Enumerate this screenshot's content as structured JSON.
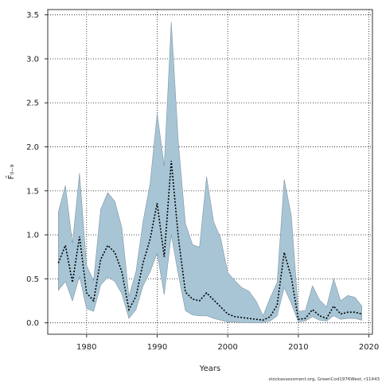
{
  "chart_data": {
    "type": "area",
    "xlabel": "Years",
    "ylabel": "F̄₀₋₉",
    "xlim": [
      1974.5,
      2020.5
    ],
    "ylim": [
      -0.13,
      3.56
    ],
    "xticks": [
      1980,
      1990,
      2000,
      2010,
      2020
    ],
    "yticks": [
      0.0,
      0.5,
      1.0,
      1.5,
      2.0,
      2.5,
      3.0,
      3.5
    ],
    "ytick_labels": [
      "0.0",
      "0.5",
      "1.0",
      "1.5",
      "2.0",
      "2.5",
      "3.0",
      "3.5"
    ],
    "grid": true,
    "colors": {
      "band": "#a7c5d5",
      "band_edge": "#7f95a3",
      "line": "#000000",
      "grid": "#333333"
    },
    "x": [
      1976,
      1977,
      1978,
      1979,
      1980,
      1981,
      1982,
      1983,
      1984,
      1985,
      1986,
      1987,
      1988,
      1989,
      1990,
      1991,
      1992,
      1993,
      1994,
      1995,
      1996,
      1997,
      1998,
      1999,
      2000,
      2001,
      2002,
      2003,
      2004,
      2005,
      2006,
      2007,
      2008,
      2009,
      2010,
      2011,
      2012,
      2013,
      2014,
      2015,
      2016,
      2017,
      2018,
      2019
    ],
    "series": [
      {
        "role": "estimate",
        "values": [
          0.68,
          0.88,
          0.46,
          0.98,
          0.34,
          0.25,
          0.72,
          0.88,
          0.8,
          0.58,
          0.15,
          0.3,
          0.68,
          0.95,
          1.36,
          0.75,
          1.84,
          0.97,
          0.35,
          0.27,
          0.25,
          0.34,
          0.26,
          0.18,
          0.1,
          0.07,
          0.06,
          0.05,
          0.04,
          0.03,
          0.07,
          0.2,
          0.8,
          0.52,
          0.04,
          0.05,
          0.15,
          0.08,
          0.05,
          0.19,
          0.1,
          0.12,
          0.12,
          0.1
        ]
      },
      {
        "role": "lower",
        "values": [
          0.37,
          0.47,
          0.25,
          0.53,
          0.16,
          0.13,
          0.43,
          0.52,
          0.47,
          0.33,
          0.05,
          0.15,
          0.42,
          0.58,
          0.79,
          0.32,
          1.0,
          0.55,
          0.14,
          0.09,
          0.08,
          0.08,
          0.05,
          0.03,
          0.01,
          0.01,
          0.0,
          0.0,
          0.0,
          0.0,
          0.02,
          0.08,
          0.4,
          0.22,
          0.01,
          0.02,
          0.07,
          0.03,
          0.02,
          0.08,
          0.04,
          0.05,
          0.05,
          0.03
        ]
      },
      {
        "role": "upper",
        "values": [
          1.26,
          1.56,
          0.9,
          1.7,
          0.65,
          0.48,
          1.29,
          1.48,
          1.38,
          1.08,
          0.3,
          0.58,
          1.15,
          1.58,
          2.38,
          1.78,
          3.42,
          2.05,
          1.13,
          0.89,
          0.86,
          1.66,
          1.15,
          0.96,
          0.57,
          0.48,
          0.4,
          0.36,
          0.25,
          0.08,
          0.28,
          0.46,
          1.63,
          1.22,
          0.13,
          0.14,
          0.42,
          0.26,
          0.18,
          0.5,
          0.25,
          0.31,
          0.29,
          0.19
        ]
      }
    ]
  },
  "footer": {
    "credit": "stockassessment.org, GreenCod1976West, r11443"
  }
}
